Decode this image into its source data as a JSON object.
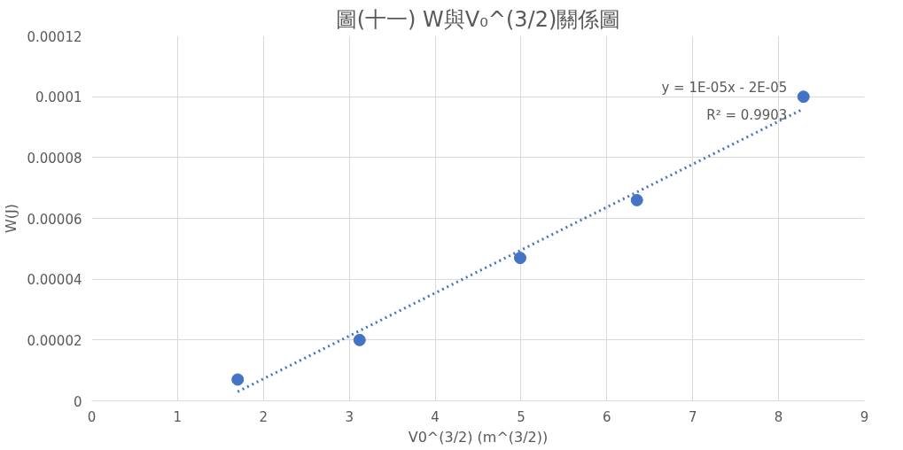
{
  "chart_data": {
    "type": "scatter",
    "title": "圖(十一) W與V₀^(3/2)關係圖",
    "xlabel": "V0^(3/2) (m^(3/2))",
    "ylabel": "W(J)",
    "x": [
      1.7,
      3.12,
      4.99,
      6.35,
      8.29
    ],
    "series": [
      {
        "color": "#4472c4",
        "marker": "circle",
        "values": [
          7e-06,
          2e-05,
          4.7e-05,
          6.6e-05,
          0.0001
        ]
      },
      {
        "type": "line",
        "color": "#4472c4",
        "line_style": "dotted",
        "marker": "none",
        "x": [
          1.7,
          8.29
        ],
        "values": [
          3e-06,
          9.6e-05
        ]
      }
    ],
    "xlim": [
      0,
      9
    ],
    "xticks": [
      0,
      1,
      2,
      3,
      4,
      5,
      6,
      7,
      8,
      9
    ],
    "ylim": [
      0,
      0.00012
    ],
    "yticks": [
      {
        "value": 0,
        "label": "0"
      },
      {
        "value": 2e-05,
        "label": "0.00002"
      },
      {
        "value": 4e-05,
        "label": "0.00004"
      },
      {
        "value": 6e-05,
        "label": "0.00006"
      },
      {
        "value": 8e-05,
        "label": "0.00008"
      },
      {
        "value": 0.0001,
        "label": "0.0001"
      },
      {
        "value": 0.00012,
        "label": "0.00012"
      }
    ],
    "grid": true,
    "annotations": [
      "y = 1E-05x - 2E-05",
      "R² = 0.9903"
    ]
  }
}
